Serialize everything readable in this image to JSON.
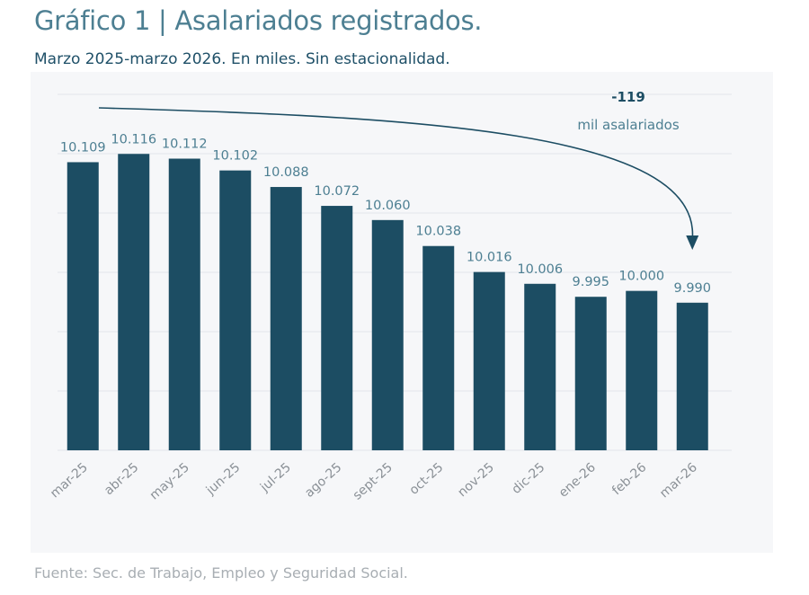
{
  "title": "Gráfico 1 | Asalariados registrados.",
  "subtitle": "Marzo 2025-marzo 2026. En miles. Sin estacionalidad.",
  "source": "Fuente: Sec. de Trabajo, Empleo y Seguridad Social.",
  "colors": {
    "bar": "#1c4d63",
    "label": "#4d7f92",
    "title": "#4d7f92",
    "subtitle": "#1f5068",
    "grid": "#e3e6ea",
    "background": "#f6f7f9",
    "axis_label": "#8a9096"
  },
  "annotation": {
    "value": "-119",
    "text": "mil asalariados"
  },
  "chart_data": {
    "type": "bar",
    "categories": [
      "mar-25",
      "abr-25",
      "may-25",
      "jun-25",
      "jul-25",
      "ago-25",
      "sept-25",
      "oct-25",
      "nov-25",
      "dic-25",
      "ene-26",
      "feb-26",
      "mar-26"
    ],
    "values": [
      10109,
      10116,
      10112,
      10102,
      10088,
      10072,
      10060,
      10038,
      10016,
      10006,
      9995,
      10000,
      9990
    ],
    "value_labels": [
      "10.109",
      "10.116",
      "10.112",
      "10.102",
      "10.088",
      "10.072",
      "10.060",
      "10.038",
      "10.016",
      "10.006",
      "9.995",
      "10.000",
      "9.990"
    ],
    "ylim": [
      9865,
      10120
    ],
    "grid": true,
    "legend": "none",
    "xlabel": "",
    "ylabel": ""
  }
}
